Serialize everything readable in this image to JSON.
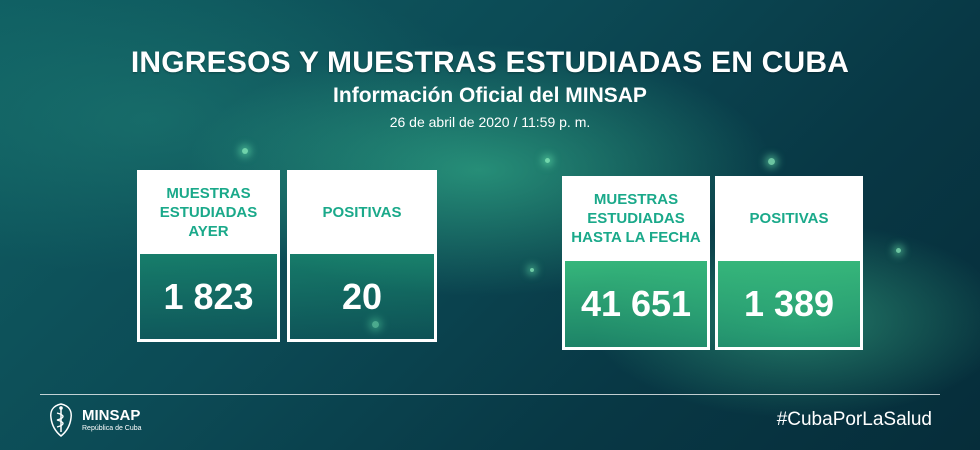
{
  "header": {
    "title": "INGRESOS Y MUESTRAS ESTUDIADAS EN CUBA",
    "subtitle": "Información Oficial del MINSAP",
    "date": "26 de abril de 2020 / 11:59 p. m."
  },
  "cards": [
    {
      "label": "MUESTRAS ESTUDIADAS AYER",
      "value": "1 823"
    },
    {
      "label": "POSITIVAS",
      "value": "20"
    },
    {
      "label": "MUESTRAS ESTUDIADAS HASTA LA FECHA",
      "value": "41 651"
    },
    {
      "label": "POSITIVAS",
      "value": "1 389"
    }
  ],
  "footer": {
    "logo_name": "MINSAP",
    "logo_sub": "República de Cuba",
    "hashtag": "#CubaPorLaSalud"
  },
  "colors": {
    "label_text": "#1aa98a",
    "background_dark": "#083845",
    "accent_green": "#3cc882"
  }
}
